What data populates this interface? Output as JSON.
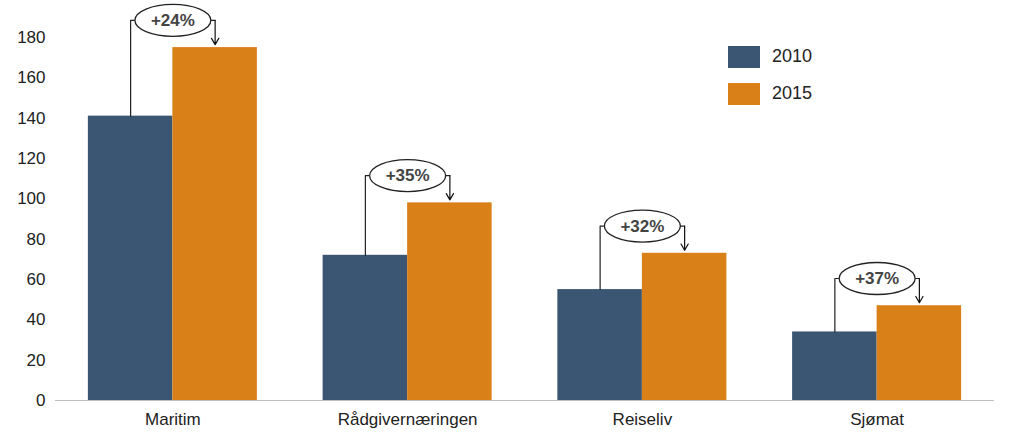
{
  "chart_data": {
    "type": "bar",
    "categories": [
      "Maritim",
      "Rådgivernæringen",
      "Reiseliv",
      "Sjømat"
    ],
    "series": [
      {
        "name": "2010",
        "color": "#3b5673",
        "values": [
          141,
          72,
          55,
          34
        ]
      },
      {
        "name": "2015",
        "color": "#d98019",
        "values": [
          175,
          98,
          73,
          47
        ]
      }
    ],
    "ylim": [
      0,
      180
    ],
    "yticks": [
      0,
      20,
      40,
      60,
      80,
      100,
      120,
      140,
      160,
      180
    ],
    "grid": false,
    "legend": "top-right",
    "annotations": [
      {
        "category": "Maritim",
        "text": "+24%"
      },
      {
        "category": "Rådgivernæringen",
        "text": "+35%"
      },
      {
        "category": "Reiseliv",
        "text": "+32%"
      },
      {
        "category": "Sjømat",
        "text": "+37%"
      }
    ]
  }
}
